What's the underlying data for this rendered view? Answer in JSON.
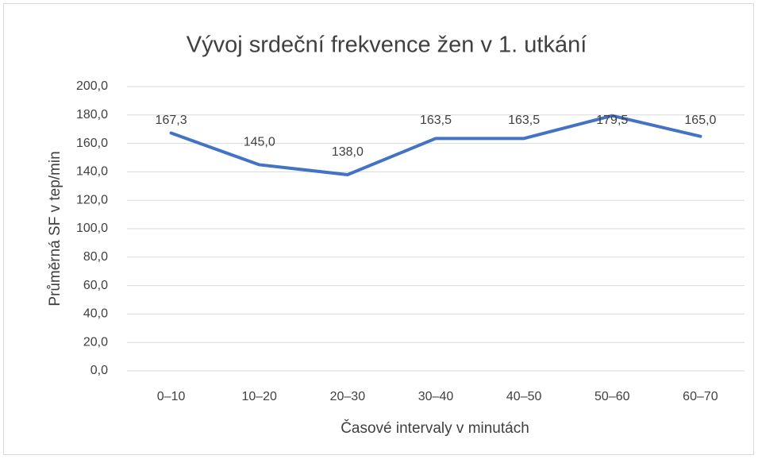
{
  "chart_data": {
    "type": "line",
    "title": "Vývoj srdeční frekvence  žen v 1. utkání",
    "x_label": "Časové intervaly v minutách",
    "y_label": "Průměrná SF v tep/min",
    "categories": [
      "0–10",
      "10–20",
      "20–30",
      "30–40",
      "40–50",
      "50–60",
      "60–70"
    ],
    "series": [
      {
        "name": "Průměrná SF",
        "color": "#4472c4",
        "values": [
          167.3,
          145.0,
          138.0,
          163.5,
          163.5,
          179.5,
          165.0
        ],
        "value_labels": [
          "167,3",
          "145,0",
          "138,0",
          "163,5",
          "163,5",
          "179,5",
          "165,0"
        ]
      }
    ],
    "ylim": [
      0,
      200
    ],
    "yticks": [
      {
        "value": 0,
        "label": "0,0"
      },
      {
        "value": 20,
        "label": "20,0"
      },
      {
        "value": 40,
        "label": "40,0"
      },
      {
        "value": 60,
        "label": "60,0"
      },
      {
        "value": 80,
        "label": "80,0"
      },
      {
        "value": 100,
        "label": "100,0"
      },
      {
        "value": 120,
        "label": "120,0"
      },
      {
        "value": 140,
        "label": "140,0"
      },
      {
        "value": 160,
        "label": "160,0"
      },
      {
        "value": 180,
        "label": "180,0"
      },
      {
        "value": 200,
        "label": "200,0"
      }
    ],
    "grid": true
  }
}
